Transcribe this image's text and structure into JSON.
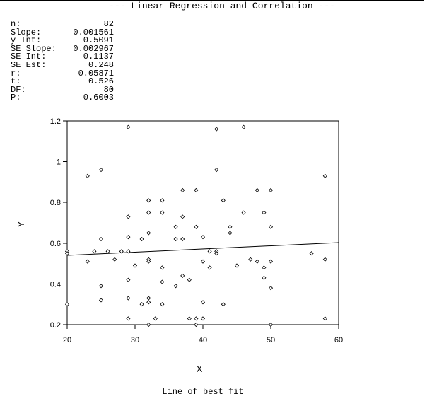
{
  "title": "--- Linear Regression and Correlation ---",
  "stats": [
    {
      "label": "n:",
      "value": "82"
    },
    {
      "label": "Slope:",
      "value": "0.001561"
    },
    {
      "label": "y Int:",
      "value": "0.5091"
    },
    {
      "label": "SE Slope:",
      "value": "0.002967"
    },
    {
      "label": "SE Int:",
      "value": "0.1137"
    },
    {
      "label": "SE Est:",
      "value": "0.248"
    },
    {
      "label": "r:",
      "value": "0.05871"
    },
    {
      "label": "t:",
      "value": "0.526"
    },
    {
      "label": "DF:",
      "value": "80"
    },
    {
      "label": "P:",
      "value": "0.6003"
    }
  ],
  "caption": "Line of best fit",
  "chart_data": {
    "type": "scatter",
    "xlabel": "X",
    "ylabel": "Y",
    "xlim": [
      20,
      60
    ],
    "ylim": [
      0.2,
      1.2
    ],
    "x_ticks": [
      20,
      30,
      40,
      50,
      60
    ],
    "y_ticks": [
      0.2,
      0.4,
      0.6,
      0.8,
      1,
      1.2
    ],
    "x_tick_labels": [
      "20",
      "30",
      "40",
      "50",
      "60"
    ],
    "y_tick_labels": [
      "0.2",
      "0.4",
      "0.6",
      "0.8",
      "1",
      "1.2"
    ],
    "grid": false,
    "regression_line": {
      "slope": 0.001561,
      "intercept": 0.5091,
      "x_from": 20,
      "x_to": 60
    },
    "points": [
      [
        29,
        1.17
      ],
      [
        46,
        1.17
      ],
      [
        42,
        1.16
      ],
      [
        25,
        0.96
      ],
      [
        42,
        0.96
      ],
      [
        23,
        0.93
      ],
      [
        58,
        0.93
      ],
      [
        37,
        0.86
      ],
      [
        39,
        0.86
      ],
      [
        48,
        0.86
      ],
      [
        50,
        0.86
      ],
      [
        32,
        0.81
      ],
      [
        34,
        0.81
      ],
      [
        43,
        0.81
      ],
      [
        29,
        0.73
      ],
      [
        37,
        0.73
      ],
      [
        32,
        0.75
      ],
      [
        34,
        0.75
      ],
      [
        46,
        0.75
      ],
      [
        49,
        0.75
      ],
      [
        36,
        0.68
      ],
      [
        39,
        0.68
      ],
      [
        44,
        0.68
      ],
      [
        50,
        0.68
      ],
      [
        32,
        0.65
      ],
      [
        44,
        0.65
      ],
      [
        25,
        0.62
      ],
      [
        29,
        0.63
      ],
      [
        37,
        0.62
      ],
      [
        40,
        0.63
      ],
      [
        20,
        0.56
      ],
      [
        20,
        0.55
      ],
      [
        24,
        0.56
      ],
      [
        26,
        0.56
      ],
      [
        29,
        0.56
      ],
      [
        41,
        0.56
      ],
      [
        42,
        0.56
      ],
      [
        42,
        0.55
      ],
      [
        56,
        0.55
      ],
      [
        23,
        0.51
      ],
      [
        27,
        0.52
      ],
      [
        32,
        0.52
      ],
      [
        32,
        0.51
      ],
      [
        40,
        0.51
      ],
      [
        47,
        0.52
      ],
      [
        48,
        0.51
      ],
      [
        50,
        0.51
      ],
      [
        58,
        0.52
      ],
      [
        30,
        0.49
      ],
      [
        34,
        0.48
      ],
      [
        41,
        0.48
      ],
      [
        45,
        0.49
      ],
      [
        49,
        0.48
      ],
      [
        37,
        0.44
      ],
      [
        38,
        0.42
      ],
      [
        29,
        0.42
      ],
      [
        34,
        0.41
      ],
      [
        49,
        0.43
      ],
      [
        25,
        0.39
      ],
      [
        36,
        0.39
      ],
      [
        50,
        0.38
      ],
      [
        25,
        0.32
      ],
      [
        29,
        0.33
      ],
      [
        32,
        0.33
      ],
      [
        32,
        0.31
      ],
      [
        20,
        0.3
      ],
      [
        31,
        0.3
      ],
      [
        34,
        0.3
      ],
      [
        40,
        0.31
      ],
      [
        43,
        0.3
      ],
      [
        29,
        0.23
      ],
      [
        33,
        0.23
      ],
      [
        38,
        0.23
      ],
      [
        39,
        0.23
      ],
      [
        40,
        0.23
      ],
      [
        58,
        0.23
      ],
      [
        32,
        0.2
      ],
      [
        39,
        0.2
      ],
      [
        50,
        0.2
      ],
      [
        36,
        0.62
      ],
      [
        31,
        0.62
      ],
      [
        28,
        0.56
      ]
    ]
  }
}
